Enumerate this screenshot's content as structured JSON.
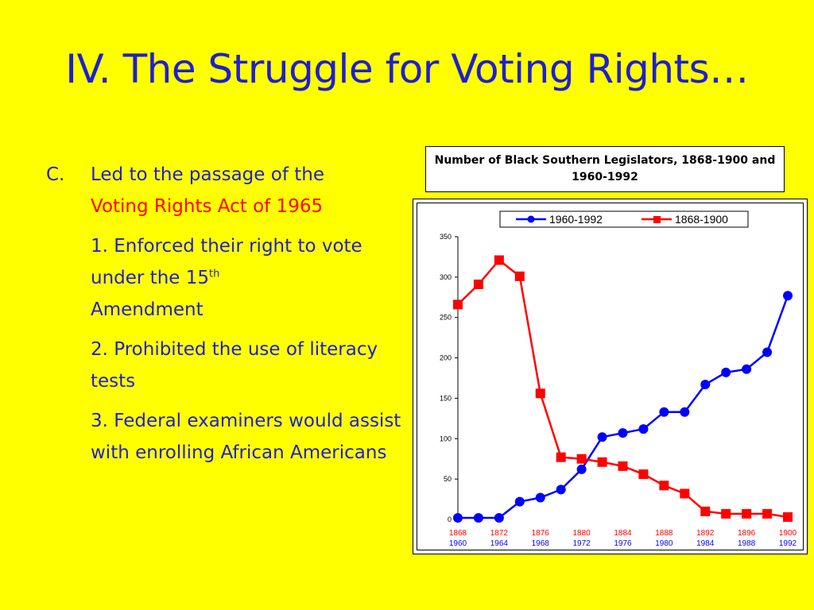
{
  "slide": {
    "title": "IV. The Struggle for Voting Rights…",
    "point": {
      "label": "C.",
      "text_1": "Led to the passage of the",
      "text_2": "Voting Rights Act of 1965"
    },
    "subpoints": [
      {
        "text_a": "1. Enforced their right to vote under the 15",
        "sup": "th",
        "text_b": "Amendment"
      },
      {
        "text": "2. Prohibited the use of literacy tests"
      },
      {
        "text": "3. Federal examiners would assist with enrolling African Americans"
      }
    ]
  },
  "chart_data": {
    "type": "line",
    "title": "Number of Black Southern Legislators, 1868-1900 and 1960-1992",
    "ylim": [
      0,
      350
    ],
    "yticks": [
      0,
      50,
      100,
      150,
      200,
      250,
      300,
      350
    ],
    "x_labels_top": [
      "1868",
      "1872",
      "1876",
      "1880",
      "1884",
      "1888",
      "1892",
      "1896",
      "1900"
    ],
    "x_labels_bottom": [
      "1960",
      "1964",
      "1968",
      "1972",
      "1976",
      "1980",
      "1984",
      "1988",
      "1992"
    ],
    "legend_position": "top",
    "series": [
      {
        "name": "1960-1992",
        "color": "#0000ff",
        "marker": "circle",
        "x": [
          1960,
          1962,
          1964,
          1966,
          1968,
          1970,
          1972,
          1974,
          1976,
          1978,
          1980,
          1982,
          1984,
          1986,
          1988,
          1990,
          1992
        ],
        "values": [
          2,
          2,
          2,
          22,
          27,
          37,
          62,
          102,
          107,
          112,
          133,
          133,
          167,
          182,
          186,
          207,
          277
        ]
      },
      {
        "name": "1868-1900",
        "color": "#ff0000",
        "marker": "square",
        "x": [
          1868,
          1870,
          1872,
          1874,
          1876,
          1878,
          1880,
          1882,
          1884,
          1886,
          1888,
          1890,
          1892,
          1894,
          1896,
          1898,
          1900
        ],
        "values": [
          266,
          291,
          321,
          301,
          156,
          77,
          75,
          71,
          66,
          56,
          42,
          32,
          10,
          7,
          7,
          7,
          3
        ]
      }
    ]
  }
}
